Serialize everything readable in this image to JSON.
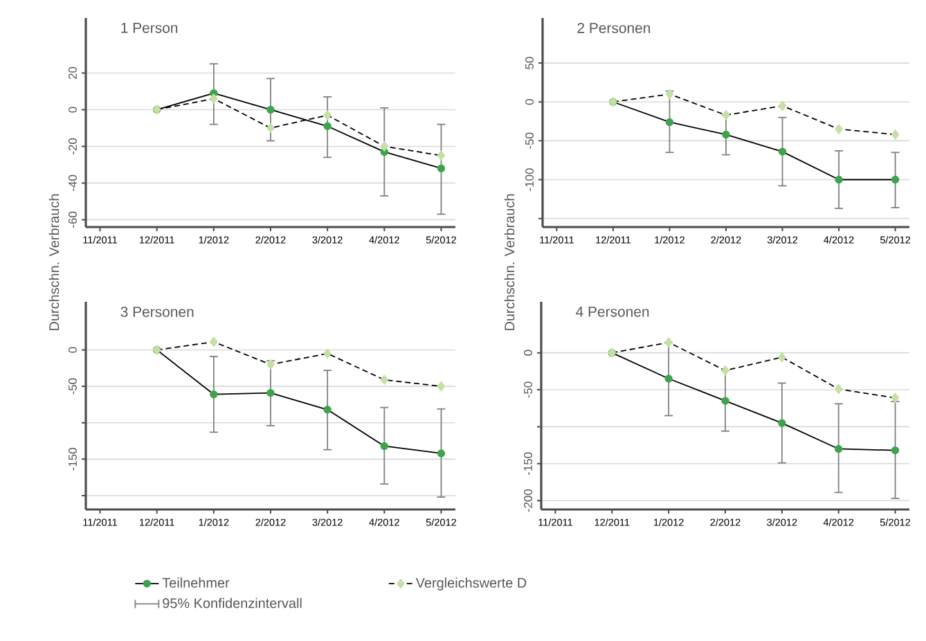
{
  "chart_data": [
    {
      "type": "line",
      "title": "1 Person",
      "categories": [
        "11/2011",
        "12/2011",
        "1/2012",
        "2/2012",
        "3/2012",
        "4/2012",
        "5/2012"
      ],
      "ylim": [
        -64,
        50
      ],
      "yticks": [
        -60,
        -40,
        -20,
        0,
        20
      ],
      "grid": "y",
      "series": [
        {
          "color": "#3fa34d",
          "marker": "circle",
          "line_style": "solid",
          "values": [
            null,
            0,
            9,
            0,
            -9,
            -23,
            -32
          ],
          "errors": [
            null,
            null,
            [
              -8,
              25
            ],
            [
              -17,
              17
            ],
            [
              -26,
              7
            ],
            [
              -47,
              1
            ],
            [
              -57,
              -8
            ]
          ]
        },
        {
          "color": "#c5e0a5",
          "marker": "diamond",
          "line_style": "dashed",
          "values": [
            null,
            0,
            6,
            -10,
            -3,
            -20,
            -25
          ]
        }
      ]
    },
    {
      "type": "line",
      "title": "2 Personen",
      "categories": [
        "11/2011",
        "12/2011",
        "1/2012",
        "2/2012",
        "3/2012",
        "4/2012",
        "5/2012"
      ],
      "ylim": [
        -161,
        108
      ],
      "yticks": [
        {
          "value": -150,
          "label": null
        },
        -100,
        -50,
        0,
        50
      ],
      "grid": "y",
      "series": [
        {
          "color": "#3fa34d",
          "marker": "circle",
          "line_style": "solid",
          "values": [
            null,
            0,
            -26,
            -42,
            -64,
            -100,
            -100
          ],
          "errors": [
            null,
            null,
            [
              -65,
              14
            ],
            [
              -68,
              -17
            ],
            [
              -108,
              -20
            ],
            [
              -137,
              -63
            ],
            [
              -136,
              -65
            ]
          ]
        },
        {
          "color": "#c5e0a5",
          "marker": "diamond",
          "line_style": "dashed",
          "values": [
            null,
            0,
            10,
            -17,
            -5,
            -35,
            -42
          ]
        }
      ]
    },
    {
      "type": "line",
      "title": "3 Personen",
      "categories": [
        "11/2011",
        "12/2011",
        "1/2012",
        "2/2012",
        "3/2012",
        "4/2012",
        "5/2012"
      ],
      "ylim": [
        -219,
        66
      ],
      "yticks": [
        {
          "value": -200,
          "label": null
        },
        -150,
        {
          "value": -100,
          "label": null
        },
        -50,
        0
      ],
      "grid": "y",
      "ylabel": "Durchschn. Verbrauch",
      "legend": "bottom",
      "annotations": [
        "95% Konfidenzintervall"
      ],
      "series": [
        {
          "name": "Teilnehmer",
          "color": "#3fa34d",
          "marker": "circle",
          "line_style": "solid",
          "values": [
            null,
            0,
            -61,
            -59,
            -82,
            -132,
            -142
          ],
          "errors": [
            null,
            null,
            [
              -113,
              -9
            ],
            [
              -104,
              -15
            ],
            [
              -137,
              -28
            ],
            [
              -184,
              -79
            ],
            [
              -202,
              -81
            ]
          ]
        },
        {
          "name": "Vergleichswerte D",
          "color": "#c5e0a5",
          "marker": "diamond",
          "line_style": "dashed",
          "values": [
            null,
            0,
            11,
            -20,
            -5,
            -41,
            -50
          ]
        }
      ]
    },
    {
      "type": "line",
      "title": "4 Personen",
      "categories": [
        "11/2011",
        "12/2011",
        "1/2012",
        "2/2012",
        "3/2012",
        "4/2012",
        "5/2012"
      ],
      "ylim": [
        -212,
        69
      ],
      "yticks": [
        -200,
        -150,
        {
          "value": -100,
          "label": null
        },
        -50,
        0
      ],
      "grid": "y",
      "ylabel": "Durchschn. Verbrauch",
      "series": [
        {
          "color": "#3fa34d",
          "marker": "circle",
          "line_style": "solid",
          "values": [
            null,
            0,
            -35,
            -65,
            -95,
            -130,
            -132
          ],
          "errors": [
            null,
            null,
            [
              -85,
              14
            ],
            [
              -106,
              -24
            ],
            [
              -149,
              -41
            ],
            [
              -189,
              -69
            ],
            [
              -197,
              -66
            ]
          ]
        },
        {
          "color": "#c5e0a5",
          "marker": "diamond",
          "line_style": "dashed",
          "values": [
            null,
            0,
            14,
            -24,
            -6,
            -49,
            -61
          ]
        }
      ]
    }
  ]
}
